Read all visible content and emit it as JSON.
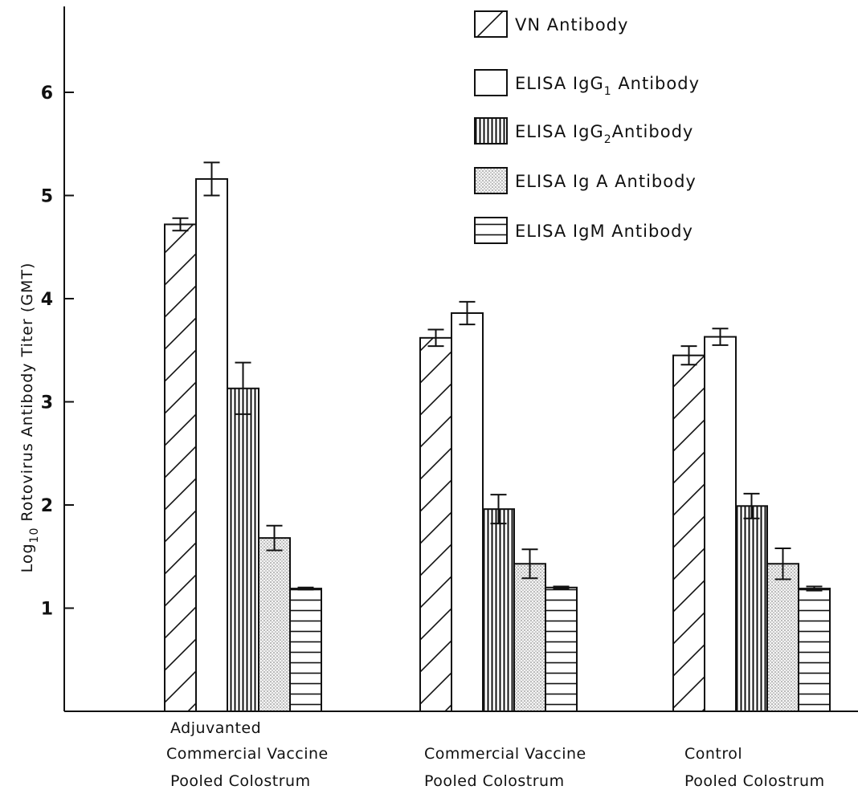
{
  "chart_data": {
    "type": "bar",
    "ylabel": "Log10 Rotovirus Antibody Titer (GMT)",
    "ylabel_parts": {
      "pre": "Log",
      "sub": "10",
      "post": " Rotovirus Antibody Titer (GMT)"
    },
    "xlabel": "",
    "ylim": [
      0,
      6.8
    ],
    "yticks": [
      "1",
      "2",
      "3",
      "4",
      "5",
      "6"
    ],
    "grid": false,
    "legend_position": "top-right",
    "categories": [
      {
        "lines": [
          "Adjuvanted",
          "Commercial Vaccine",
          "Pooled Colostrum"
        ]
      },
      {
        "lines": [
          "",
          "Commercial Vaccine",
          "Pooled Colostrum"
        ]
      },
      {
        "lines": [
          "",
          "Control",
          "Pooled Colostrum"
        ]
      }
    ],
    "series": [
      {
        "name": "VN Antibody",
        "legend_parts": {
          "pre": "VN Antibody"
        },
        "pattern": "diagonal",
        "values": [
          4.72,
          3.62,
          3.45
        ],
        "errors": [
          0.06,
          0.08,
          0.09
        ]
      },
      {
        "name": "ELISA IgG1 Antibody",
        "legend_parts": {
          "pre": "ELISA IgG",
          "sub": "1",
          "post": " Antibody"
        },
        "pattern": "blank",
        "values": [
          5.16,
          3.86,
          3.63
        ],
        "errors": [
          0.16,
          0.11,
          0.08
        ]
      },
      {
        "name": "ELISA IgG2 Antibody",
        "legend_parts": {
          "pre": "ELISA IgG",
          "sub": "2",
          "post": "Antibody"
        },
        "pattern": "vertical",
        "values": [
          3.13,
          1.96,
          1.99
        ],
        "errors": [
          0.25,
          0.14,
          0.12
        ]
      },
      {
        "name": "ELISA IgA Antibody",
        "legend_parts": {
          "pre": "ELISA Ig A Antibody"
        },
        "pattern": "dots",
        "values": [
          1.68,
          1.43,
          1.43
        ],
        "errors": [
          0.12,
          0.14,
          0.15
        ]
      },
      {
        "name": "ELISA IgM Antibody",
        "legend_parts": {
          "pre": "ELISA IgM Antibody"
        },
        "pattern": "horizontal",
        "values": [
          1.19,
          1.2,
          1.19
        ],
        "errors": [
          0.01,
          0.01,
          0.02
        ]
      }
    ]
  }
}
